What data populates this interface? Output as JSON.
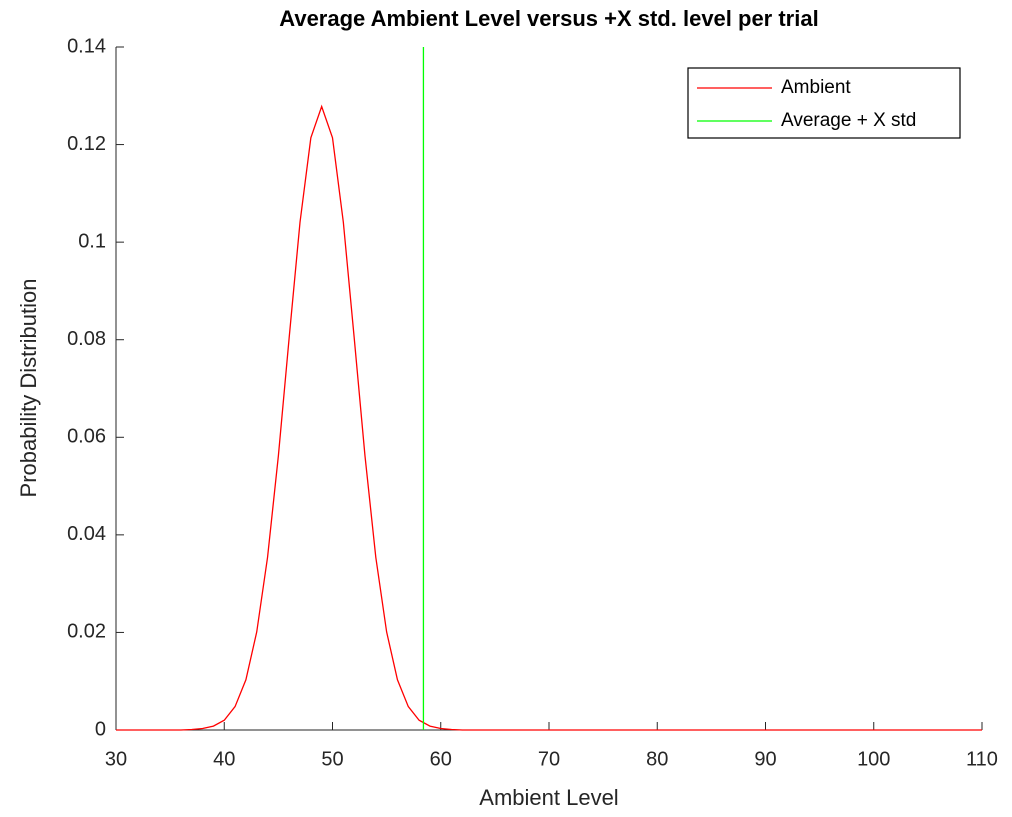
{
  "chart_data": {
    "type": "line",
    "title": "Average Ambient Level versus +X std. level per trial",
    "x_label": "Ambient Level",
    "y_label": "Probability Distribution",
    "series": [
      {
        "name": "Ambient",
        "color": "#ff0000",
        "x": [
          30,
          36,
          37,
          38,
          39,
          40,
          41,
          42,
          43,
          44,
          45,
          46,
          47,
          48,
          49,
          50,
          51,
          52,
          53,
          54,
          55,
          56,
          57,
          58,
          59,
          60,
          61,
          62,
          110
        ],
        "values": [
          0,
          0,
          0.0001,
          0.0003,
          0.0008,
          0.002,
          0.0048,
          0.0103,
          0.0201,
          0.0354,
          0.0562,
          0.0805,
          0.1041,
          0.1214,
          0.1278,
          0.1214,
          0.1041,
          0.0805,
          0.0562,
          0.0354,
          0.0201,
          0.0103,
          0.0048,
          0.002,
          0.0008,
          0.0003,
          0.0001,
          0,
          0
        ]
      },
      {
        "name": "Average + X std",
        "color": "#00ff00",
        "x": [
          58.4,
          58.4
        ],
        "values": [
          0,
          0.14
        ]
      }
    ],
    "xlim": [
      30,
      110
    ],
    "xticks": [
      30,
      40,
      50,
      60,
      70,
      80,
      90,
      100,
      110
    ],
    "ylim": [
      0,
      0.14
    ],
    "yticks": [
      0,
      0.02,
      0.04,
      0.06,
      0.08,
      0.1,
      0.12,
      0.14
    ],
    "legend": "upper right"
  }
}
